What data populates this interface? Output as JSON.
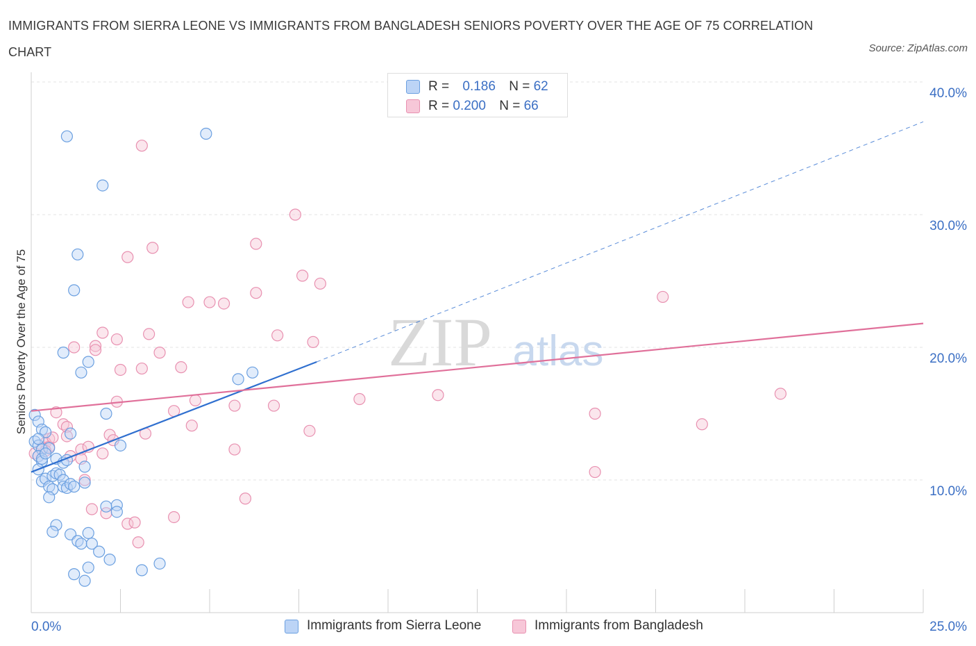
{
  "title": "IMMIGRANTS FROM SIERRA LEONE VS IMMIGRANTS FROM BANGLADESH SENIORS POVERTY OVER THE AGE OF 75 CORRELATION CHART",
  "source": "Source: ZipAtlas.com",
  "watermark": {
    "zip": "ZIP",
    "atlas": "atlas"
  },
  "legend": {
    "rows": [
      {
        "r_label": "R =",
        "r_value": "0.186",
        "n_label": "N =",
        "n_value": "62"
      },
      {
        "r_label": "R =",
        "r_value": "0.200",
        "n_label": "N =",
        "n_value": "66"
      }
    ]
  },
  "colors": {
    "sierra_leone": "#6a9fe0",
    "sierra_leone_fill": "#bcd4f6",
    "bangladesh": "#e890b0",
    "bangladesh_fill": "#f7c7d8",
    "trend_blue": "#2f6fcf",
    "trend_pink": "#e0709a",
    "axis_text": "#3b6fc4"
  },
  "chart_data": {
    "type": "scatter",
    "xlabel": "",
    "ylabel": "Seniors Poverty Over the Age of 75",
    "xlim": [
      0,
      25
    ],
    "ylim": [
      0,
      40
    ],
    "x_tick_labels": [
      "0.0%",
      "25.0%"
    ],
    "y_ticks": [
      10,
      20,
      30,
      40
    ],
    "y_tick_labels": [
      "10.0%",
      "20.0%",
      "30.0%",
      "40.0%"
    ],
    "grid": true,
    "legend_position": "top-center",
    "series": [
      {
        "name": "Immigrants from Sierra Leone",
        "trend": {
          "x": [
            0.0,
            8.0
          ],
          "y": [
            10.6,
            18.9
          ],
          "extended_to": [
            25.0,
            37.0
          ]
        },
        "points": [
          [
            1.0,
            35.9
          ],
          [
            4.9,
            36.1
          ],
          [
            2.0,
            32.2
          ],
          [
            1.3,
            27.0
          ],
          [
            1.2,
            24.3
          ],
          [
            0.9,
            19.6
          ],
          [
            1.6,
            18.9
          ],
          [
            1.4,
            18.1
          ],
          [
            5.8,
            17.6
          ],
          [
            6.2,
            18.1
          ],
          [
            0.1,
            14.9
          ],
          [
            0.2,
            14.4
          ],
          [
            0.3,
            13.8
          ],
          [
            0.4,
            13.6
          ],
          [
            1.1,
            13.5
          ],
          [
            0.1,
            12.9
          ],
          [
            0.2,
            12.6
          ],
          [
            0.3,
            12.3
          ],
          [
            0.5,
            12.4
          ],
          [
            0.2,
            11.8
          ],
          [
            0.3,
            11.4
          ],
          [
            0.7,
            11.6
          ],
          [
            0.9,
            11.3
          ],
          [
            1.0,
            11.5
          ],
          [
            1.5,
            11.0
          ],
          [
            2.1,
            15.0
          ],
          [
            2.5,
            12.6
          ],
          [
            0.2,
            10.8
          ],
          [
            0.3,
            9.9
          ],
          [
            0.4,
            10.1
          ],
          [
            0.6,
            10.3
          ],
          [
            0.7,
            10.5
          ],
          [
            0.8,
            10.4
          ],
          [
            0.9,
            10.0
          ],
          [
            0.5,
            9.5
          ],
          [
            0.6,
            9.3
          ],
          [
            0.9,
            9.5
          ],
          [
            1.0,
            9.4
          ],
          [
            1.1,
            9.7
          ],
          [
            1.2,
            9.5
          ],
          [
            1.5,
            9.8
          ],
          [
            0.5,
            8.7
          ],
          [
            2.1,
            8.0
          ],
          [
            2.4,
            8.1
          ],
          [
            2.4,
            7.6
          ],
          [
            0.7,
            6.6
          ],
          [
            0.6,
            6.1
          ],
          [
            1.1,
            5.9
          ],
          [
            1.6,
            6.0
          ],
          [
            1.3,
            5.4
          ],
          [
            1.4,
            5.2
          ],
          [
            1.7,
            5.2
          ],
          [
            1.9,
            4.6
          ],
          [
            2.2,
            4.0
          ],
          [
            1.2,
            2.9
          ],
          [
            1.6,
            3.4
          ],
          [
            1.5,
            2.4
          ],
          [
            3.1,
            3.2
          ],
          [
            3.6,
            3.7
          ],
          [
            0.3,
            11.6
          ],
          [
            0.4,
            12.0
          ],
          [
            0.2,
            13.1
          ]
        ]
      },
      {
        "name": "Immigrants from Bangladesh",
        "trend": {
          "x": [
            0.0,
            25.0
          ],
          "y": [
            15.2,
            21.8
          ]
        },
        "points": [
          [
            3.1,
            35.2
          ],
          [
            7.4,
            30.0
          ],
          [
            6.3,
            27.8
          ],
          [
            3.4,
            27.5
          ],
          [
            2.7,
            26.8
          ],
          [
            7.6,
            25.4
          ],
          [
            8.1,
            24.8
          ],
          [
            6.3,
            24.1
          ],
          [
            4.4,
            23.4
          ],
          [
            5.0,
            23.4
          ],
          [
            5.4,
            23.3
          ],
          [
            17.7,
            23.8
          ],
          [
            2.0,
            21.1
          ],
          [
            3.3,
            21.0
          ],
          [
            6.9,
            20.9
          ],
          [
            2.4,
            20.6
          ],
          [
            7.9,
            20.4
          ],
          [
            1.2,
            20.0
          ],
          [
            1.8,
            20.1
          ],
          [
            1.8,
            19.8
          ],
          [
            3.6,
            19.6
          ],
          [
            4.2,
            18.5
          ],
          [
            2.5,
            18.3
          ],
          [
            3.1,
            18.4
          ],
          [
            9.2,
            16.1
          ],
          [
            11.4,
            16.4
          ],
          [
            21.0,
            16.5
          ],
          [
            2.4,
            15.9
          ],
          [
            4.6,
            16.0
          ],
          [
            5.7,
            15.6
          ],
          [
            6.8,
            15.6
          ],
          [
            4.0,
            15.2
          ],
          [
            0.7,
            15.1
          ],
          [
            15.8,
            15.0
          ],
          [
            18.8,
            14.2
          ],
          [
            0.9,
            14.2
          ],
          [
            1.0,
            14.0
          ],
          [
            4.5,
            14.1
          ],
          [
            7.8,
            13.7
          ],
          [
            3.2,
            13.5
          ],
          [
            2.2,
            13.4
          ],
          [
            0.5,
            13.1
          ],
          [
            1.0,
            13.3
          ],
          [
            2.3,
            13.0
          ],
          [
            0.4,
            12.8
          ],
          [
            0.5,
            12.5
          ],
          [
            0.3,
            12.4
          ],
          [
            1.4,
            12.3
          ],
          [
            1.6,
            12.5
          ],
          [
            5.7,
            12.3
          ],
          [
            2.0,
            12.0
          ],
          [
            0.1,
            12.0
          ],
          [
            0.2,
            11.8
          ],
          [
            1.1,
            11.8
          ],
          [
            1.4,
            11.6
          ],
          [
            15.8,
            10.6
          ],
          [
            1.5,
            10.0
          ],
          [
            6.0,
            8.6
          ],
          [
            1.7,
            7.8
          ],
          [
            2.1,
            7.5
          ],
          [
            4.0,
            7.2
          ],
          [
            2.7,
            6.7
          ],
          [
            2.9,
            6.8
          ],
          [
            3.0,
            5.3
          ],
          [
            0.4,
            12.2
          ],
          [
            0.6,
            13.2
          ]
        ]
      }
    ]
  }
}
